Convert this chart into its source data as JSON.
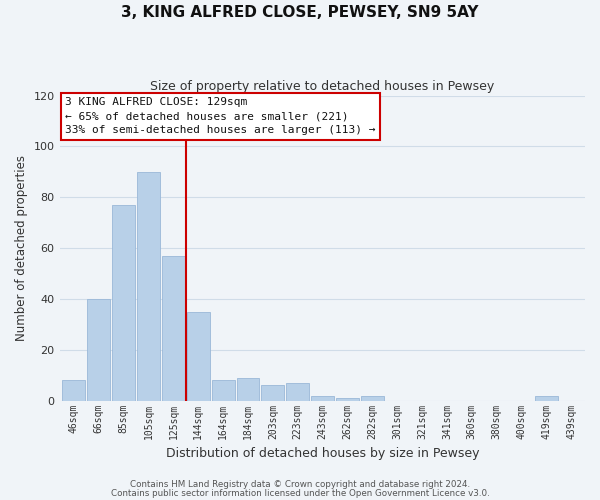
{
  "title": "3, KING ALFRED CLOSE, PEWSEY, SN9 5AY",
  "subtitle": "Size of property relative to detached houses in Pewsey",
  "xlabel": "Distribution of detached houses by size in Pewsey",
  "ylabel": "Number of detached properties",
  "bar_labels": [
    "46sqm",
    "66sqm",
    "85sqm",
    "105sqm",
    "125sqm",
    "144sqm",
    "164sqm",
    "184sqm",
    "203sqm",
    "223sqm",
    "243sqm",
    "262sqm",
    "282sqm",
    "301sqm",
    "321sqm",
    "341sqm",
    "360sqm",
    "380sqm",
    "400sqm",
    "419sqm",
    "439sqm"
  ],
  "bar_values": [
    8,
    40,
    77,
    90,
    57,
    35,
    8,
    9,
    6,
    7,
    2,
    1,
    2,
    0,
    0,
    0,
    0,
    0,
    0,
    2,
    0
  ],
  "bar_color": "#b8d0e8",
  "bar_edge_color": "#b8d0e8",
  "vline_color": "#cc0000",
  "ylim": [
    0,
    120
  ],
  "yticks": [
    0,
    20,
    40,
    60,
    80,
    100,
    120
  ],
  "annotation_title": "3 KING ALFRED CLOSE: 129sqm",
  "annotation_line1": "← 65% of detached houses are smaller (221)",
  "annotation_line2": "33% of semi-detached houses are larger (113) →",
  "annotation_box_color": "#ffffff",
  "annotation_box_edge": "#cc0000",
  "footer_line1": "Contains HM Land Registry data © Crown copyright and database right 2024.",
  "footer_line2": "Contains public sector information licensed under the Open Government Licence v3.0.",
  "grid_color": "#d0dce8",
  "background_color": "#f0f4f8"
}
